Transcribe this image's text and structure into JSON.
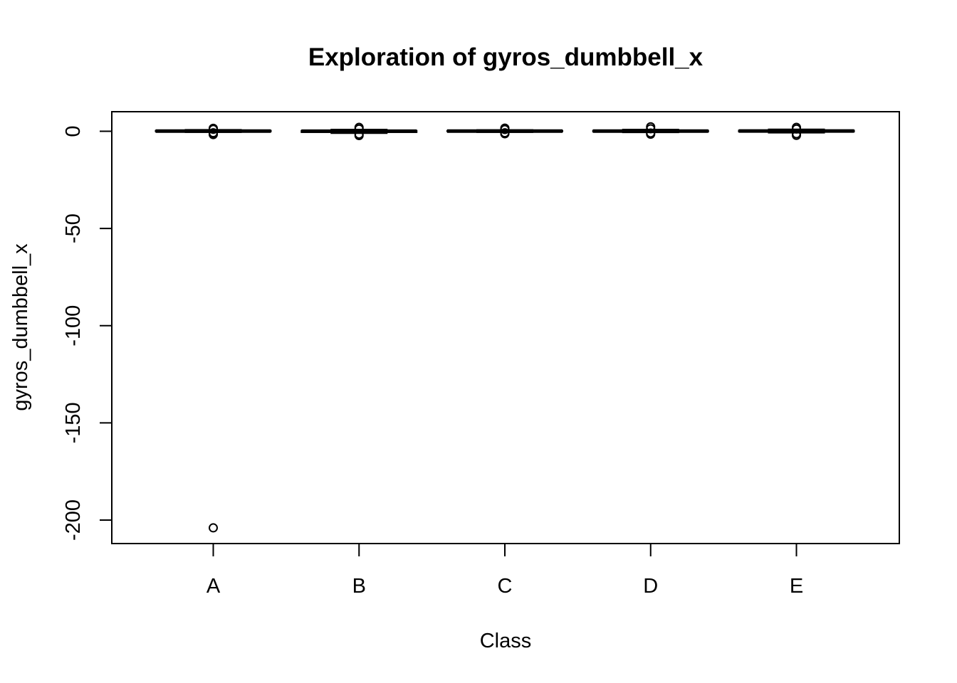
{
  "chart_data": {
    "type": "box",
    "title": "Exploration of  gyros_dumbbell_x",
    "xlabel": "Class",
    "ylabel": "gyros_dumbbell_x",
    "categories": [
      "A",
      "B",
      "C",
      "D",
      "E"
    ],
    "ylim": [
      -210,
      10
    ],
    "yticks": [
      0,
      -50,
      -100,
      -150,
      -200
    ],
    "ytick_labels": [
      "0",
      "-50",
      "-100",
      "-150",
      "-200"
    ],
    "boxes": [
      {
        "category": "A",
        "q1": -0.05,
        "median": 0.11,
        "q3": 0.3,
        "whisker_low": -0.5,
        "whisker_high": 0.8,
        "outliers": [
          1.5,
          1.0,
          -0.8,
          -1.2,
          -1.7,
          -204
        ]
      },
      {
        "category": "B",
        "q1": -0.5,
        "median": 0.05,
        "q3": 0.3,
        "whisker_low": -1.0,
        "whisker_high": 0.9,
        "outliers": [
          2.0,
          1.2,
          -1.5,
          -2.2
        ]
      },
      {
        "category": "C",
        "q1": -0.1,
        "median": 0.1,
        "q3": 0.3,
        "whisker_low": -0.5,
        "whisker_high": 0.7,
        "outliers": [
          1.6,
          0.9,
          -0.8,
          -1.3
        ]
      },
      {
        "category": "D",
        "q1": -0.2,
        "median": 0.1,
        "q3": 0.35,
        "whisker_low": -0.6,
        "whisker_high": 0.9,
        "outliers": [
          2.3,
          1.3,
          -0.9,
          -1.5
        ]
      },
      {
        "category": "E",
        "q1": -0.2,
        "median": 0.13,
        "q3": 0.4,
        "whisker_low": -0.8,
        "whisker_high": 1.0,
        "outliers": [
          2.0,
          1.2,
          -1.3,
          -2.1
        ]
      }
    ]
  }
}
